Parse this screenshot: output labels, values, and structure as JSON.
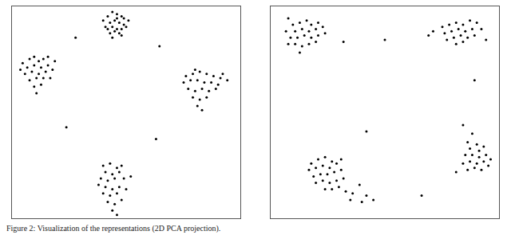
{
  "caption": "Figure 2: Visualization of the representations (2D PCA projection).",
  "chart_data": [
    {
      "type": "scatter",
      "color": "#000000",
      "marker": "circle",
      "tick_labels": false,
      "grid": false,
      "xlim": [
        0,
        100
      ],
      "ylim": [
        0,
        100
      ],
      "x": [
        42,
        44,
        46,
        48,
        45,
        47,
        43,
        49,
        41,
        44,
        46,
        48,
        50,
        45,
        47,
        43,
        40,
        51,
        46,
        44,
        48,
        42,
        49,
        5,
        8,
        10,
        12,
        14,
        7,
        10,
        13,
        16,
        6,
        9,
        12,
        15,
        18,
        8,
        11,
        14,
        17,
        10,
        13,
        4,
        16,
        11,
        19,
        76,
        79,
        82,
        85,
        88,
        91,
        75,
        78,
        81,
        84,
        87,
        90,
        94,
        77,
        80,
        83,
        86,
        89,
        79,
        82,
        85,
        81,
        83,
        92,
        80,
        40,
        43,
        46,
        48,
        41,
        44,
        47,
        39,
        42,
        45,
        49,
        52,
        41,
        44,
        47,
        40,
        43,
        46,
        42,
        45,
        48,
        44,
        46,
        38,
        50,
        28,
        64.5,
        24,
        63
      ],
      "values": [
        95,
        97,
        96,
        95,
        93,
        92,
        92,
        91,
        90,
        90,
        89,
        89,
        90,
        88,
        87,
        87,
        93,
        93,
        94,
        85,
        86,
        89,
        94,
        73,
        75,
        76,
        74,
        75,
        71,
        72,
        71,
        72,
        68,
        69,
        68,
        69,
        70,
        65,
        66,
        66,
        66,
        62,
        63,
        70,
        76,
        59,
        74,
        67,
        68,
        69,
        68,
        67,
        66,
        64,
        65,
        65,
        64,
        64,
        63,
        65,
        61,
        60,
        61,
        60,
        61,
        57,
        56,
        57,
        53,
        51,
        68,
        70,
        25,
        26,
        24,
        25,
        22,
        21,
        22,
        19,
        18,
        19,
        19,
        20,
        15,
        14,
        15,
        12,
        11,
        12,
        8,
        7,
        9,
        4,
        2,
        16,
        14,
        85,
        81,
        43,
        37.5
      ]
    },
    {
      "type": "scatter",
      "color": "#000000",
      "marker": "circle",
      "tick_labels": false,
      "grid": false,
      "xlim": [
        0,
        100
      ],
      "ylim": [
        0,
        100
      ],
      "x": [
        8,
        10,
        13,
        16,
        18,
        21,
        7,
        11,
        14,
        17,
        20,
        23,
        9,
        12,
        15,
        18,
        21,
        11,
        14,
        17,
        20,
        13,
        8,
        24,
        75,
        78,
        81,
        84,
        87,
        90,
        76,
        79,
        82,
        85,
        88,
        92,
        77,
        80,
        83,
        86,
        89,
        81,
        84,
        94,
        71,
        18,
        21,
        24,
        27,
        17,
        20,
        23,
        26,
        29,
        19,
        22,
        25,
        28,
        31,
        20,
        23,
        26,
        29,
        32,
        24,
        27,
        30,
        33,
        36,
        39,
        42,
        45,
        40,
        35,
        31,
        88,
        86,
        90,
        87,
        91,
        93,
        85,
        88,
        91,
        94,
        84,
        87,
        90,
        93,
        96,
        86,
        89,
        92,
        81,
        95,
        32,
        50,
        69,
        89,
        42,
        84,
        66
      ],
      "values": [
        94,
        91,
        92,
        93,
        91,
        92,
        88,
        88,
        89,
        88,
        89,
        90,
        85,
        85,
        86,
        85,
        86,
        82,
        81,
        82,
        83,
        78,
        82,
        87,
        90,
        91,
        92,
        91,
        93,
        92,
        87,
        88,
        89,
        88,
        89,
        89,
        84,
        85,
        86,
        85,
        86,
        82,
        83,
        84,
        88,
        26,
        28,
        29,
        27,
        23,
        24,
        25,
        24,
        26,
        20,
        21,
        21,
        22,
        23,
        17,
        18,
        17,
        18,
        19,
        14,
        14,
        15,
        13,
        12,
        16,
        11,
        9,
        8,
        9,
        28,
        40,
        36,
        35,
        33,
        32,
        34,
        30,
        30,
        29,
        30,
        26,
        27,
        26,
        27,
        28,
        23,
        24,
        23,
        22,
        25,
        83,
        84,
        86,
        65,
        41,
        44,
        11
      ]
    }
  ]
}
